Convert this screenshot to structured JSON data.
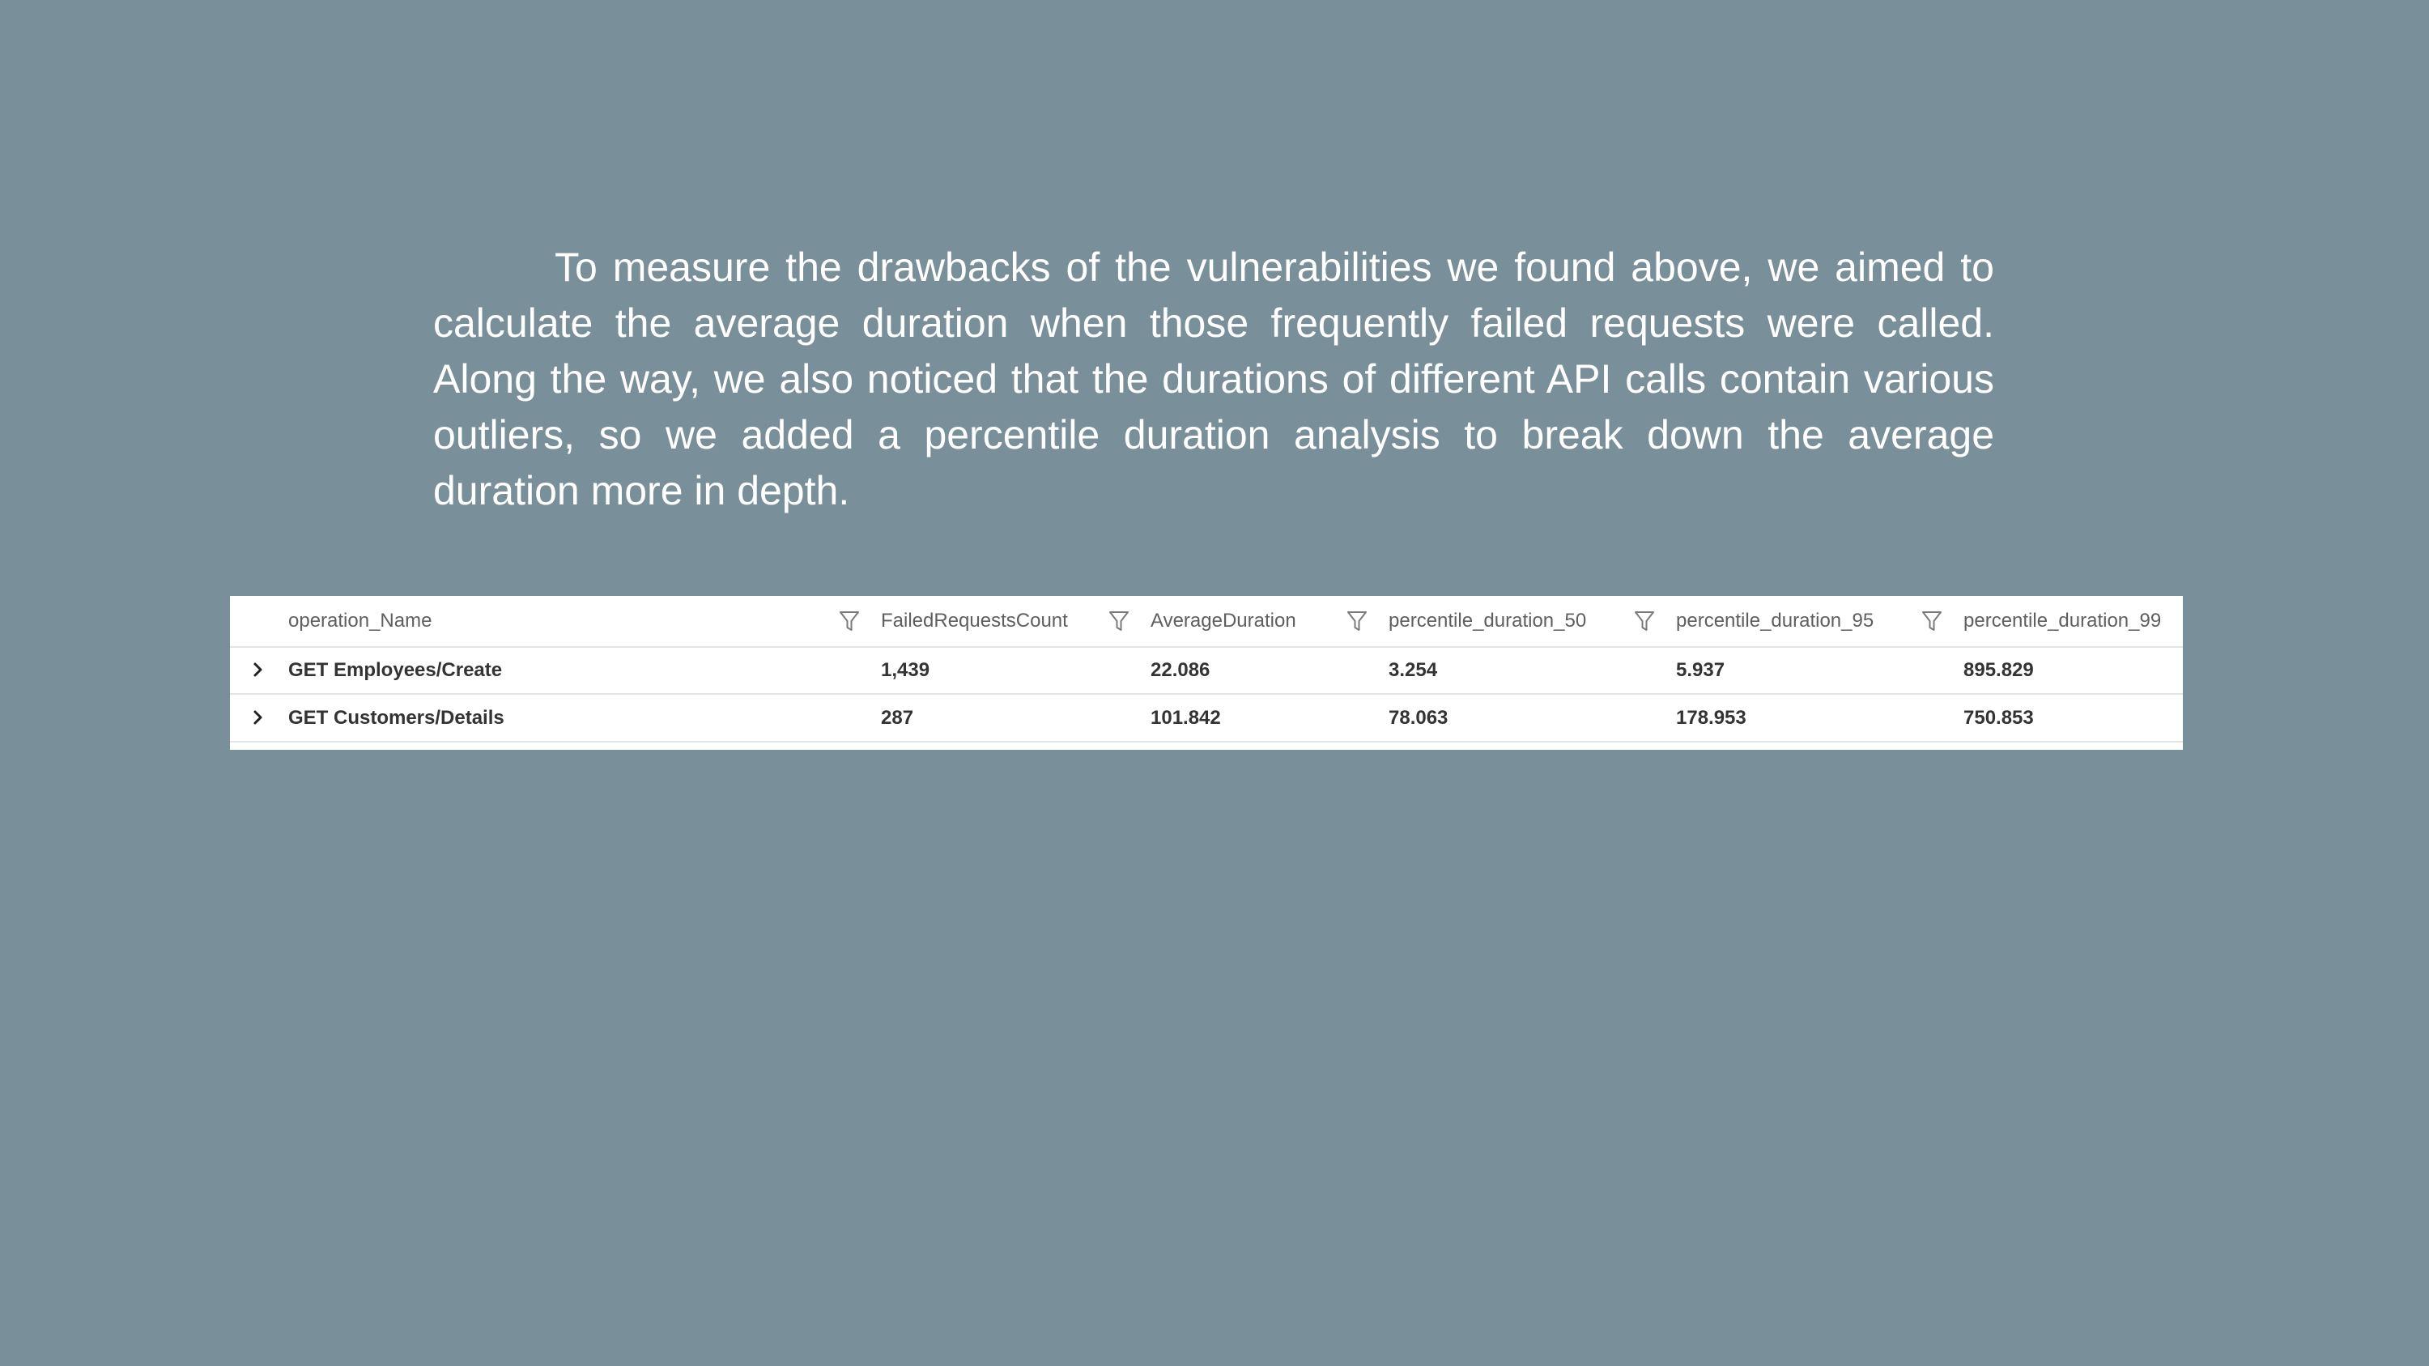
{
  "paragraph": {
    "text": "To measure the drawbacks of the vulnerabilities we found above, we aimed to calculate the average duration when those frequently failed requests were called. Along the way, we also noticed that the durations of different API calls contain various outliers, so we added a percentile duration analysis to break down the average duration more in depth."
  },
  "table": {
    "columns": [
      "operation_Name",
      "FailedRequestsCount",
      "AverageDuration",
      "percentile_duration_50",
      "percentile_duration_95",
      "percentile_duration_99"
    ],
    "rows": [
      [
        "GET Employees/Create",
        "1,439",
        "22.086",
        "3.254",
        "5.937",
        "895.829"
      ],
      [
        "GET Customers/Details",
        "287",
        "101.842",
        "78.063",
        "178.953",
        "750.853"
      ]
    ]
  },
  "icons": {
    "filter": "filter-icon",
    "expand": "chevron-right-icon"
  },
  "colors": {
    "background": "#79909b",
    "paragraph_text": "#ffffff",
    "table_background": "#ffffff",
    "header_text": "#5f5f5f",
    "cell_text": "#333333",
    "row_divider": "#e4e4e4"
  }
}
